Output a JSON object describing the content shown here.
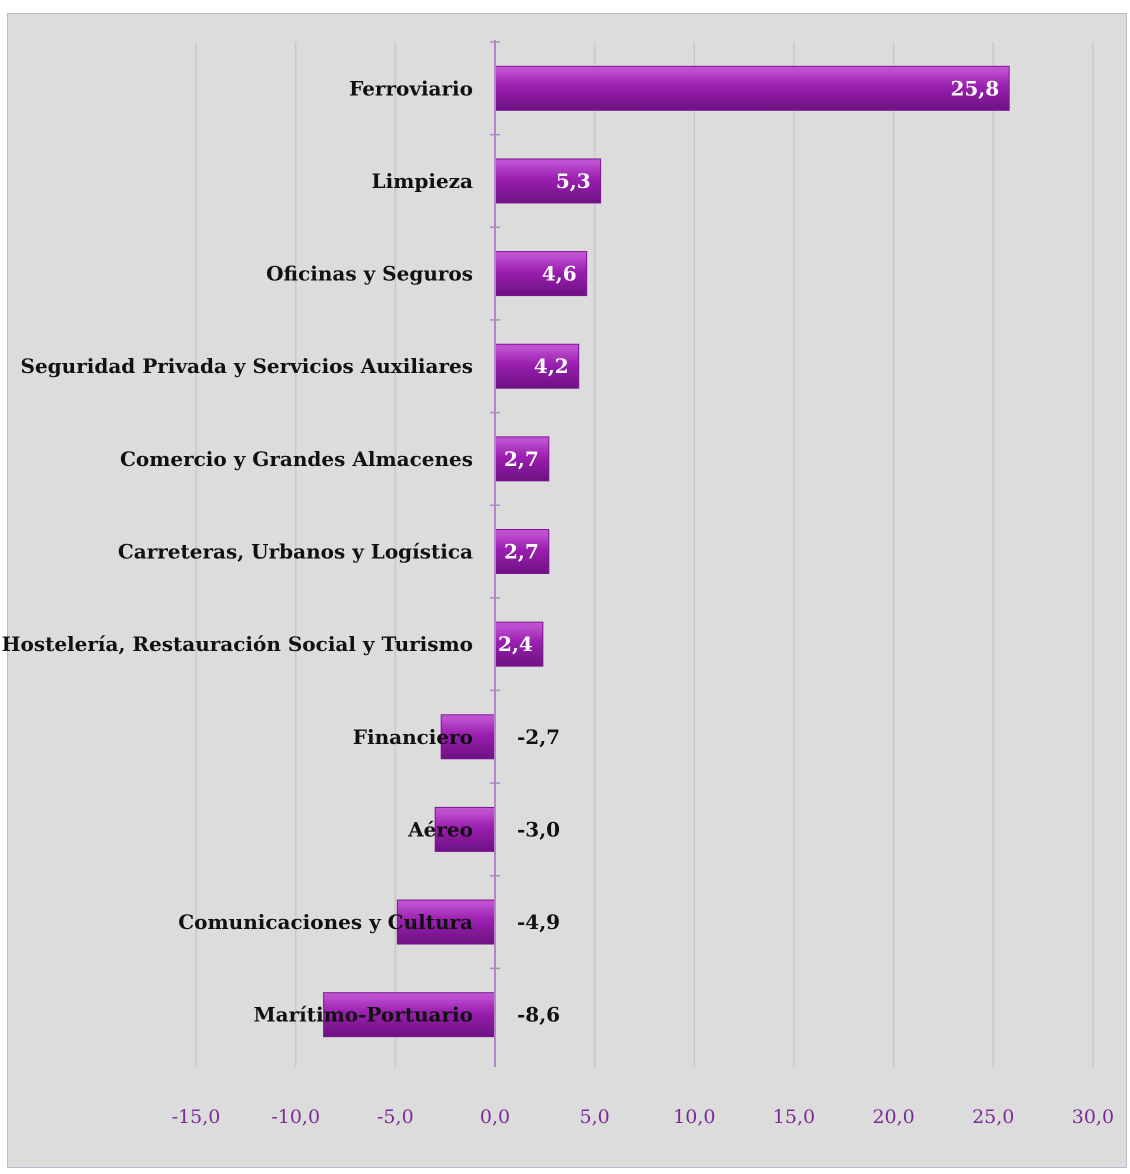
{
  "chart_data": {
    "type": "bar",
    "orientation": "horizontal",
    "categories": [
      "Ferroviario",
      "Limpieza",
      "Oficinas y Seguros",
      "Seguridad Privada y Servicios Auxiliares",
      "Comercio y Grandes Almacenes",
      "Carreteras, Urbanos y Logística",
      "Hostelería, Restauración Social y Turismo",
      "Financiero",
      "Aéreo",
      "Comunicaciones y Cultura",
      "Marítimo-Portuario"
    ],
    "values": [
      25.8,
      5.3,
      4.6,
      4.2,
      2.7,
      2.7,
      2.4,
      -2.7,
      -3.0,
      -4.9,
      -8.6
    ],
    "value_labels": [
      "25,8",
      "5,3",
      "4,6",
      "4,2",
      "2,7",
      "2,7",
      "2,4",
      "-2,7",
      "-3,0",
      "-4,9",
      "-8,6"
    ],
    "xlim": [
      -15,
      30
    ],
    "xticks": [
      -15,
      -10,
      -5,
      0,
      5,
      10,
      15,
      20,
      25,
      30
    ],
    "xtick_labels": [
      "-15,0",
      "-10,0",
      "-5,0",
      "0,0",
      "5,0",
      "10,0",
      "15,0",
      "20,0",
      "25,0",
      "30,0"
    ],
    "title": "",
    "xlabel": "",
    "ylabel": "",
    "grid": "vertical",
    "legend": "none",
    "colors": {
      "bar": "#9b1fb0",
      "bar_dark": "#7a1790",
      "bar_light": "#c04fd2",
      "axis": "#b784c8",
      "grid": "#c8c8c8",
      "tick_text": "#7a2a96",
      "positive_label": "#ffffff",
      "negative_label": "#111111",
      "background": "#dcdcdc"
    }
  }
}
